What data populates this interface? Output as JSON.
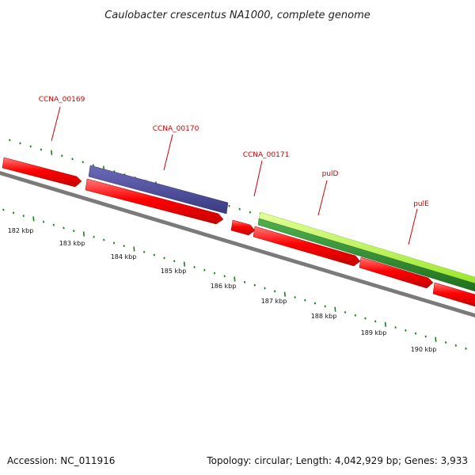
{
  "title": "Caulobacter crescentus NA1000, complete genome",
  "footer": {
    "accession": "Accession: NC_011916",
    "summary": "Topology: circular; Length: 4,042,929 bp; Genes: 3,933"
  },
  "colors": {
    "backbone": "#808080",
    "forward_cds": "#ff0000",
    "reverse_cds": "#ff0000",
    "highlight_cds": "#4b4b9a",
    "gene_light": "#b4ff3c",
    "gene_dark": "#2e8b2e",
    "ticks": "#1e7d1e",
    "label": "#cc0000"
  },
  "gene_labels": [
    {
      "name": "CCNA_00169"
    },
    {
      "name": "CCNA_00170"
    },
    {
      "name": "CCNA_00171"
    },
    {
      "name": "pulD"
    },
    {
      "name": "pulE"
    }
  ],
  "scale_labels": [
    "182 kbp",
    "183 kbp",
    "184 kbp",
    "185 kbp",
    "186 kbp",
    "187 kbp",
    "188 kbp",
    "189 kbp",
    "190 kbp"
  ]
}
